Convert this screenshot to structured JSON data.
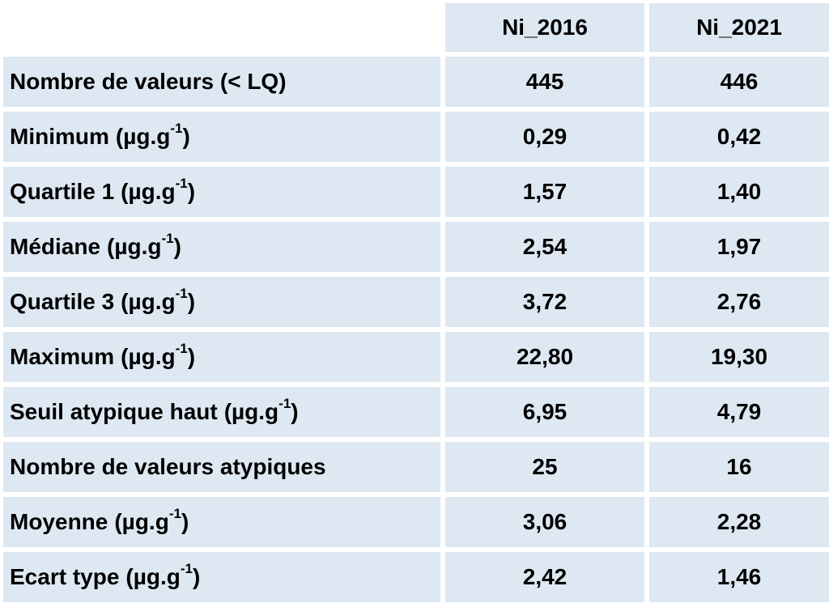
{
  "columns": [
    "Ni_2016",
    "Ni_2021"
  ],
  "rows": [
    {
      "label": "Nombre de valeurs (< LQ)",
      "unit": "",
      "sup": "",
      "close": "",
      "values": [
        "445",
        "446"
      ]
    },
    {
      "label": "Minimum",
      "unit": "(µg.g",
      "sup": "-1",
      "close": ")",
      "values": [
        "0,29",
        "0,42"
      ]
    },
    {
      "label": "Quartile 1",
      "unit": "(µg.g",
      "sup": "-1",
      "close": ")",
      "values": [
        "1,57",
        "1,40"
      ]
    },
    {
      "label": "Médiane",
      "unit": "(µg.g",
      "sup": "-1",
      "close": ")",
      "values": [
        "2,54",
        "1,97"
      ]
    },
    {
      "label": "Quartile 3",
      "unit": "(µg.g",
      "sup": "-1",
      "close": ")",
      "values": [
        "3,72",
        "2,76"
      ]
    },
    {
      "label": "Maximum",
      "unit": "(µg.g",
      "sup": "-1",
      "close": ")",
      "values": [
        "22,80",
        "19,30"
      ]
    },
    {
      "label": "Seuil atypique haut",
      "unit": "(µg.g",
      "sup": "-1",
      "close": ")",
      "values": [
        "6,95",
        "4,79"
      ]
    },
    {
      "label": "Nombre de valeurs atypiques",
      "unit": "",
      "sup": "",
      "close": "",
      "values": [
        "25",
        "16"
      ]
    },
    {
      "label": "Moyenne",
      "unit": "(µg.g",
      "sup": "-1",
      "close": ")",
      "values": [
        "3,06",
        "2,28"
      ]
    },
    {
      "label": "Ecart type",
      "unit": "(µg.g",
      "sup": "-1",
      "close": ")",
      "values": [
        "2,42",
        "1,46"
      ]
    }
  ],
  "colors": {
    "cell_fill": "#dde8f3",
    "text": "#000000",
    "background": "#ffffff"
  }
}
